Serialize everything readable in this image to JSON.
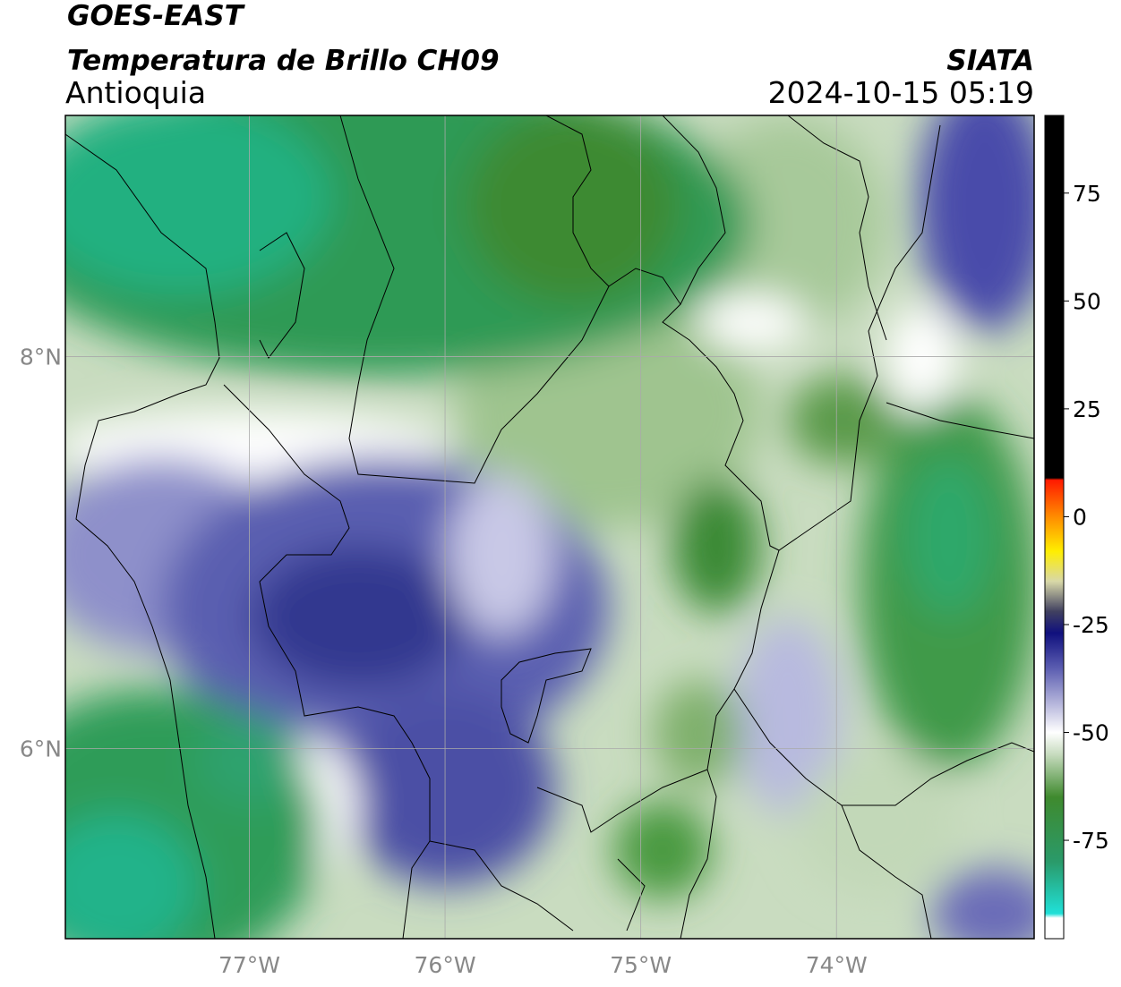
{
  "chart_data": {
    "type": "map",
    "title": "GOES-EAST",
    "subtitle": "Temperatura de Brillo CH09",
    "region": "Antioquia",
    "source": "SIATA",
    "timestamp": "2024-10-15 05:19",
    "xlim": [
      -77.94,
      -72.99
    ],
    "ylim": [
      5.03,
      9.23
    ],
    "xticks": [
      {
        "value": -77,
        "label": "77°W"
      },
      {
        "value": -76,
        "label": "76°W"
      },
      {
        "value": -75,
        "label": "75°W"
      },
      {
        "value": -74,
        "label": "74°W"
      }
    ],
    "yticks": [
      {
        "value": 6,
        "label": "6°N"
      },
      {
        "value": 8,
        "label": "8°N"
      }
    ],
    "grid": true,
    "grid_color": "#aaaaaa",
    "colorbar": {
      "ylim": [
        -97.8,
        93
      ],
      "yticks": [
        -75,
        -50,
        -25,
        0,
        25,
        50,
        75
      ],
      "colorscale": [
        [
          93,
          "#000000"
        ],
        [
          9,
          "#000000"
        ],
        [
          8.5,
          "#ff1a00"
        ],
        [
          0,
          "#ff8c00"
        ],
        [
          -8,
          "#ffee00"
        ],
        [
          -15,
          "#d8d8a8"
        ],
        [
          -22,
          "#404060"
        ],
        [
          -27,
          "#10107e"
        ],
        [
          -35,
          "#5a5cb0"
        ],
        [
          -45,
          "#c8c8e4"
        ],
        [
          -50,
          "#ffffff"
        ],
        [
          -55,
          "#c8dcc0"
        ],
        [
          -65,
          "#3f8a2e"
        ],
        [
          -80,
          "#2a9a6a"
        ],
        [
          -92,
          "#20e0d8"
        ],
        [
          -93,
          "#ffffff"
        ],
        [
          -97.8,
          "#ffffff"
        ]
      ]
    }
  }
}
